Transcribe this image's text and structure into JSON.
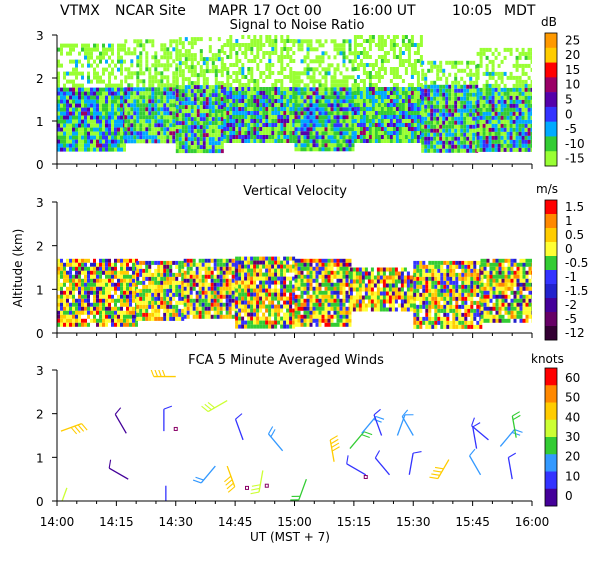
{
  "header": {
    "station": "VTMX",
    "site": "NCAR Site",
    "instrument": "MAPR",
    "date": "17 Oct 00",
    "ut_time": "16:00 UT",
    "local_time": "10:05",
    "tz": "MDT"
  },
  "chart_data": [
    {
      "id": "snr",
      "type": "heatmap",
      "title": "Signal to Noise Ratio",
      "ylabel": "",
      "ylim": [
        0,
        3
      ],
      "yticks": [
        "0",
        "1",
        "2",
        "3"
      ],
      "xlim_minutes": [
        0,
        120
      ],
      "colorbar": {
        "unit": "dB",
        "labels": [
          "25",
          "20",
          "15",
          "10",
          "5",
          "0",
          "-5",
          "-10",
          "-15"
        ],
        "colors": [
          "#ff9900",
          "#ffcc00",
          "#ff0000",
          "#990066",
          "#5500aa",
          "#3333ff",
          "#00aaff",
          "#33cc33",
          "#99ff33"
        ]
      },
      "segments": [
        {
          "t0": 0,
          "t1": 17,
          "bottom": 0.3,
          "top": 2.8
        },
        {
          "t0": 17,
          "t1": 30,
          "bottom": 0.55,
          "top": 2.9
        },
        {
          "t0": 30,
          "t1": 42,
          "bottom": 0.3,
          "top": 2.95
        },
        {
          "t0": 42,
          "t1": 60,
          "bottom": 0.55,
          "top": 3.0
        },
        {
          "t0": 60,
          "t1": 75,
          "bottom": 0.3,
          "top": 2.9
        },
        {
          "t0": 75,
          "t1": 92,
          "bottom": 0.55,
          "top": 3.0
        },
        {
          "t0": 92,
          "t1": 106,
          "bottom": 0.3,
          "top": 2.4
        },
        {
          "t0": 106,
          "t1": 120,
          "bottom": 0.3,
          "top": 2.7
        }
      ]
    },
    {
      "id": "vv",
      "type": "heatmap",
      "title": "Vertical Velocity",
      "ylabel": "Altitude (km)",
      "ylim": [
        0,
        3
      ],
      "yticks": [
        "0",
        "1",
        "2",
        "3"
      ],
      "xlim_minutes": [
        0,
        120
      ],
      "colorbar": {
        "unit": "m/s",
        "labels": [
          "1.5",
          "1",
          "0.5",
          "0",
          "-0.5",
          "-1",
          "-1.5",
          "-2",
          "-5",
          "-12"
        ],
        "colors": [
          "#ff0000",
          "#ff8800",
          "#ffcc00",
          "#ffff33",
          "#33cc33",
          "#3333ff",
          "#2222cc",
          "#440099",
          "#660066",
          "#330033"
        ]
      },
      "segments": [
        {
          "t0": 0,
          "t1": 20,
          "bottom": 0.15,
          "top": 1.7
        },
        {
          "t0": 20,
          "t1": 32,
          "bottom": 0.3,
          "top": 1.65
        },
        {
          "t0": 32,
          "t1": 45,
          "bottom": 0.4,
          "top": 1.7
        },
        {
          "t0": 45,
          "t1": 60,
          "bottom": 0.15,
          "top": 1.75
        },
        {
          "t0": 60,
          "t1": 74,
          "bottom": 0.15,
          "top": 1.7
        },
        {
          "t0": 74,
          "t1": 90,
          "bottom": 0.55,
          "top": 1.5
        },
        {
          "t0": 90,
          "t1": 107,
          "bottom": 0.15,
          "top": 1.65
        },
        {
          "t0": 107,
          "t1": 120,
          "bottom": 0.3,
          "top": 1.7
        }
      ]
    },
    {
      "id": "winds",
      "type": "scatter",
      "title": "FCA 5 Minute Averaged Winds",
      "ylabel": "",
      "ylim": [
        0,
        3
      ],
      "yticks": [
        "0",
        "1",
        "2",
        "3"
      ],
      "xlim_minutes": [
        0,
        120
      ],
      "xlabel": "UT  (MST + 7)",
      "xticks": [
        "14:00",
        "14:15",
        "14:30",
        "14:45",
        "15:00",
        "15:15",
        "15:30",
        "15:45",
        "16:00"
      ],
      "colorbar": {
        "unit": "knots",
        "labels": [
          "60",
          "50",
          "40",
          "30",
          "20",
          "10",
          "0"
        ],
        "colors": [
          "#ff0000",
          "#ff8800",
          "#ffcc00",
          "#ccff33",
          "#33cc33",
          "#3399ff",
          "#3333ff",
          "#440099"
        ]
      },
      "barbs": [
        {
          "t": 1,
          "alt": 1.6,
          "speed": 40,
          "dir": 70
        },
        {
          "t": 2.5,
          "alt": 0.3,
          "speed": 25,
          "dir": 200
        },
        {
          "t": 17.5,
          "alt": 1.55,
          "speed": 5,
          "dir": 330
        },
        {
          "t": 18,
          "alt": 0.5,
          "speed": 5,
          "dir": 300
        },
        {
          "t": 27,
          "alt": 1.6,
          "speed": 8,
          "dir": 0
        },
        {
          "t": 27.5,
          "alt": 0.35,
          "speed": 10,
          "dir": 180
        },
        {
          "t": 30,
          "alt": 2.85,
          "speed": 40,
          "dir": 270
        },
        {
          "t": 43,
          "alt": 2.3,
          "speed": 25,
          "dir": 240
        },
        {
          "t": 40,
          "alt": 0.8,
          "speed": 15,
          "dir": 220
        },
        {
          "t": 43,
          "alt": 0.8,
          "speed": 35,
          "dir": 160
        },
        {
          "t": 47,
          "alt": 1.4,
          "speed": 10,
          "dir": 340
        },
        {
          "t": 52,
          "alt": 0.7,
          "speed": 30,
          "dir": 190
        },
        {
          "t": 57,
          "alt": 1.15,
          "speed": 15,
          "dir": 320
        },
        {
          "t": 63,
          "alt": 0.5,
          "speed": 20,
          "dir": 200
        },
        {
          "t": 70,
          "alt": 0.9,
          "speed": 35,
          "dir": 350
        },
        {
          "t": 74,
          "alt": 1.2,
          "speed": 20,
          "dir": 40
        },
        {
          "t": 77,
          "alt": 1.55,
          "speed": 15,
          "dir": 40
        },
        {
          "t": 78,
          "alt": 0.6,
          "speed": 8,
          "dir": 300
        },
        {
          "t": 82,
          "alt": 1.5,
          "speed": 10,
          "dir": 340
        },
        {
          "t": 84,
          "alt": 0.6,
          "speed": 10,
          "dir": 320
        },
        {
          "t": 86,
          "alt": 1.5,
          "speed": 12,
          "dir": 20
        },
        {
          "t": 89,
          "alt": 0.6,
          "speed": 10,
          "dir": 10
        },
        {
          "t": 90,
          "alt": 1.5,
          "speed": 12,
          "dir": 330
        },
        {
          "t": 99,
          "alt": 0.95,
          "speed": 40,
          "dir": 210
        },
        {
          "t": 106,
          "alt": 1.2,
          "speed": 10,
          "dir": 350
        },
        {
          "t": 107,
          "alt": 0.6,
          "speed": 12,
          "dir": 330
        },
        {
          "t": 109,
          "alt": 1.4,
          "speed": 10,
          "dir": 310
        },
        {
          "t": 112,
          "alt": 1.25,
          "speed": 15,
          "dir": 40
        },
        {
          "t": 116,
          "alt": 1.45,
          "speed": 20,
          "dir": 350
        },
        {
          "t": 115,
          "alt": 0.5,
          "speed": 10,
          "dir": 350
        }
      ],
      "calm_points": [
        {
          "t": 30,
          "alt": 1.65
        },
        {
          "t": 48,
          "alt": 0.3
        },
        {
          "t": 53,
          "alt": 0.35
        },
        {
          "t": 78,
          "alt": 0.55
        }
      ]
    }
  ]
}
